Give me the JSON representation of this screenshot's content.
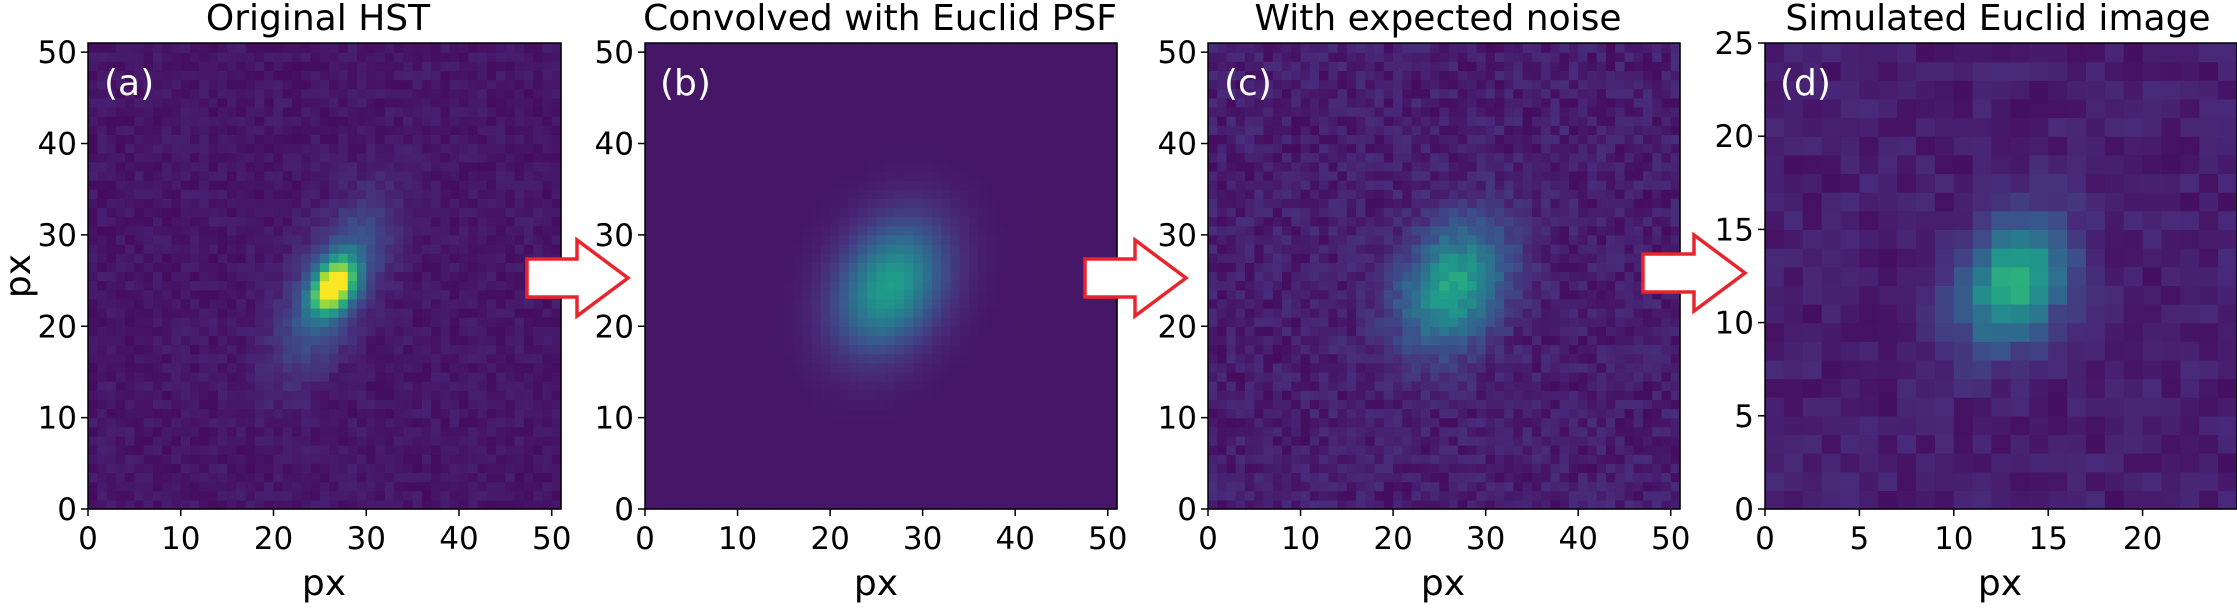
{
  "chart_data": [
    {
      "type": "heatmap",
      "title": "Original HST",
      "panel_label": "(a)",
      "xlabel": "px",
      "ylabel": "px",
      "grid_size": 51,
      "xlim": [
        0,
        51
      ],
      "ylim": [
        0,
        51
      ],
      "xticks": [
        0,
        10,
        20,
        30,
        40,
        50
      ],
      "yticks": [
        0,
        10,
        20,
        30,
        40,
        50
      ],
      "source_center": [
        26.5,
        24.5
      ],
      "peak_level": 1.0,
      "background_level": 0.06,
      "noise_level": 0.03,
      "colormap": "viridis"
    },
    {
      "type": "heatmap",
      "title": "Convolved with Euclid PSF",
      "panel_label": "(b)",
      "xlabel": "px",
      "ylabel": "",
      "grid_size": 51,
      "xlim": [
        0,
        51
      ],
      "ylim": [
        0,
        51
      ],
      "xticks": [
        0,
        10,
        20,
        30,
        40,
        50
      ],
      "yticks": [
        0,
        10,
        20,
        30,
        40,
        50
      ],
      "source_center": [
        26.5,
        24.5
      ],
      "peak_level": 0.5,
      "background_level": 0.06,
      "noise_level": 0.0,
      "colormap": "viridis"
    },
    {
      "type": "heatmap",
      "title": "With expected noise",
      "panel_label": "(c)",
      "xlabel": "px",
      "ylabel": "",
      "grid_size": 51,
      "xlim": [
        0,
        51
      ],
      "ylim": [
        0,
        51
      ],
      "xticks": [
        0,
        10,
        20,
        30,
        40,
        50
      ],
      "yticks": [
        0,
        10,
        20,
        30,
        40,
        50
      ],
      "source_center": [
        26.5,
        24.5
      ],
      "peak_level": 0.5,
      "background_level": 0.08,
      "noise_level": 0.05,
      "colormap": "viridis"
    },
    {
      "type": "heatmap",
      "title": "Simulated Euclid image",
      "panel_label": "(d)",
      "xlabel": "px",
      "ylabel": "",
      "grid_size": 25,
      "xlim": [
        0,
        25
      ],
      "ylim": [
        0,
        25
      ],
      "xticks": [
        0,
        5,
        10,
        15,
        20
      ],
      "yticks": [
        0,
        5,
        10,
        15,
        20,
        25
      ],
      "source_center": [
        13.2,
        12.2
      ],
      "peak_level": 0.55,
      "background_level": 0.08,
      "noise_level": 0.04,
      "colormap": "viridis"
    }
  ],
  "arrow_color": "#e8252c"
}
